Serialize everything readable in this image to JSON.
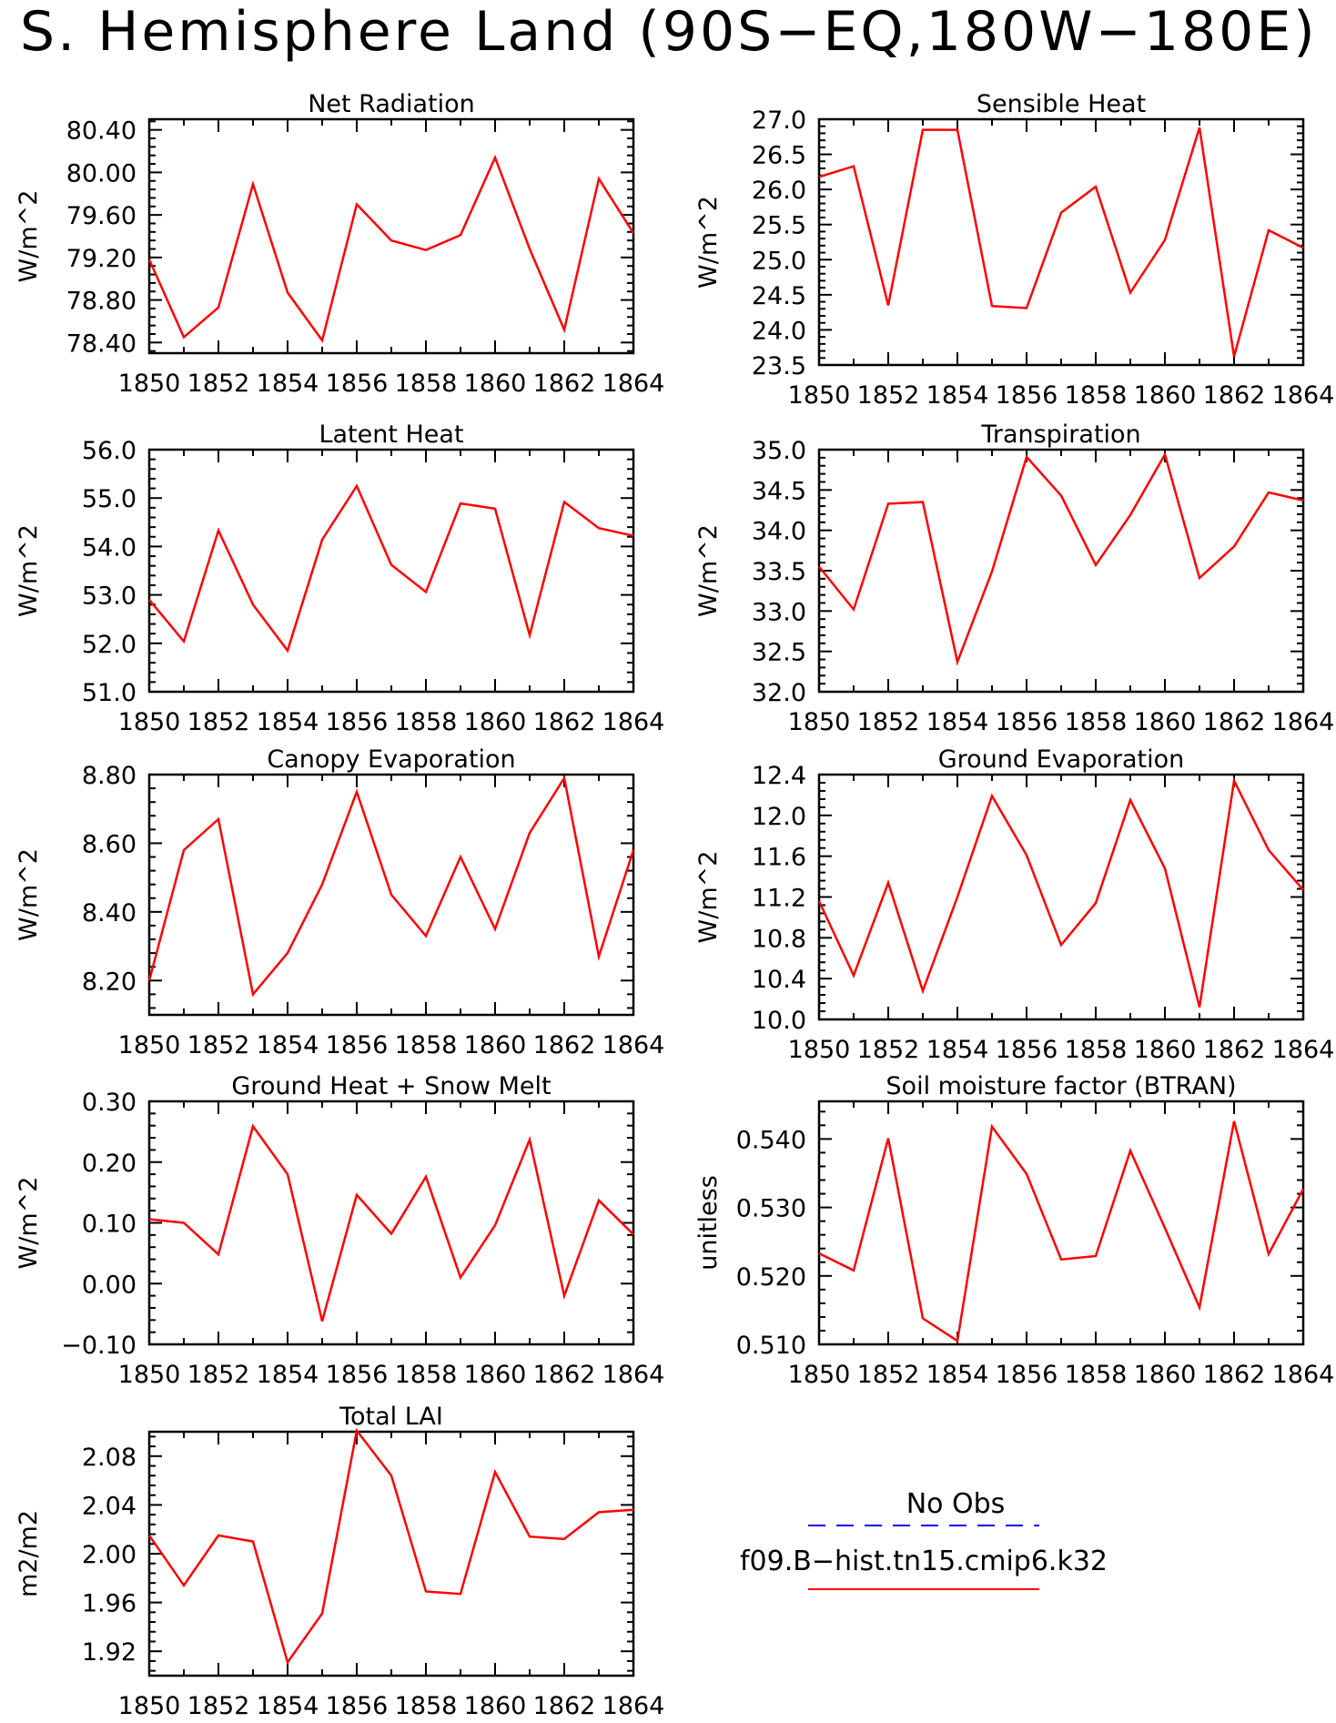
{
  "title": "S. Hemisphere Land (90S−EQ,180W−180E)",
  "colors": {
    "model": "#ff0000",
    "obs": "#0000ff",
    "axis": "#000000"
  },
  "legend": {
    "obs_label": "No Obs",
    "model_label": "f09.B−hist.tn15.cmip6.k32"
  },
  "chart_data": [
    {
      "type": "line",
      "title": "Net Radiation",
      "ylabel": "W/m^2",
      "x": [
        1850,
        1851,
        1852,
        1853,
        1854,
        1855,
        1856,
        1857,
        1858,
        1859,
        1860,
        1861,
        1862,
        1863,
        1864
      ],
      "xticks": [
        "1850",
        "1852",
        "1854",
        "1856",
        "1858",
        "1860",
        "1862",
        "1864"
      ],
      "ylim": [
        78.3,
        80.5
      ],
      "yticks": [
        "78.40",
        "78.80",
        "79.20",
        "79.60",
        "80.00",
        "80.40"
      ],
      "grid": false,
      "series": [
        {
          "values": [
            79.18,
            78.45,
            78.73,
            79.89,
            78.87,
            78.42,
            79.7,
            79.36,
            79.27,
            79.41,
            80.14,
            79.28,
            78.52,
            79.94,
            79.43
          ]
        }
      ]
    },
    {
      "type": "line",
      "title": "Sensible Heat",
      "ylabel": "W/m^2",
      "x": [
        1850,
        1851,
        1852,
        1853,
        1854,
        1855,
        1856,
        1857,
        1858,
        1859,
        1860,
        1861,
        1862,
        1863,
        1864
      ],
      "xticks": [
        "1850",
        "1852",
        "1854",
        "1856",
        "1858",
        "1860",
        "1862",
        "1864"
      ],
      "ylim": [
        23.5,
        27.0
      ],
      "yticks": [
        "23.5",
        "24.0",
        "24.5",
        "25.0",
        "25.5",
        "26.0",
        "26.5",
        "27.0"
      ],
      "grid": false,
      "series": [
        {
          "values": [
            26.18,
            26.33,
            24.35,
            26.85,
            26.85,
            24.34,
            24.31,
            25.67,
            26.04,
            24.53,
            25.28,
            26.88,
            23.62,
            25.42,
            25.17
          ]
        }
      ]
    },
    {
      "type": "line",
      "title": "Latent Heat",
      "ylabel": "W/m^2",
      "x": [
        1850,
        1851,
        1852,
        1853,
        1854,
        1855,
        1856,
        1857,
        1858,
        1859,
        1860,
        1861,
        1862,
        1863,
        1864
      ],
      "xticks": [
        "1850",
        "1852",
        "1854",
        "1856",
        "1858",
        "1860",
        "1862",
        "1864"
      ],
      "ylim": [
        51.0,
        56.0
      ],
      "yticks": [
        "51.0",
        "52.0",
        "53.0",
        "54.0",
        "55.0",
        "56.0"
      ],
      "grid": false,
      "series": [
        {
          "values": [
            52.9,
            52.04,
            54.33,
            52.8,
            51.85,
            54.14,
            55.25,
            53.62,
            53.06,
            54.89,
            54.78,
            52.17,
            54.92,
            54.38,
            54.22
          ]
        }
      ]
    },
    {
      "type": "line",
      "title": "Transpiration",
      "ylabel": "W/m^2",
      "x": [
        1850,
        1851,
        1852,
        1853,
        1854,
        1855,
        1856,
        1857,
        1858,
        1859,
        1860,
        1861,
        1862,
        1863,
        1864
      ],
      "xticks": [
        "1850",
        "1852",
        "1854",
        "1856",
        "1858",
        "1860",
        "1862",
        "1864"
      ],
      "ylim": [
        32.0,
        35.0
      ],
      "yticks": [
        "32.0",
        "32.5",
        "33.0",
        "33.5",
        "34.0",
        "34.5",
        "35.0"
      ],
      "grid": false,
      "series": [
        {
          "values": [
            33.55,
            33.02,
            34.33,
            34.35,
            32.37,
            33.49,
            34.91,
            34.43,
            33.57,
            34.19,
            34.94,
            33.41,
            33.8,
            34.47,
            34.37
          ]
        }
      ]
    },
    {
      "type": "line",
      "title": "Canopy Evaporation",
      "ylabel": "W/m^2",
      "x": [
        1850,
        1851,
        1852,
        1853,
        1854,
        1855,
        1856,
        1857,
        1858,
        1859,
        1860,
        1861,
        1862,
        1863,
        1864
      ],
      "xticks": [
        "1850",
        "1852",
        "1854",
        "1856",
        "1858",
        "1860",
        "1862",
        "1864"
      ],
      "ylim": [
        8.1,
        8.8
      ],
      "yticks": [
        "8.20",
        "8.40",
        "8.60",
        "8.80"
      ],
      "grid": false,
      "series": [
        {
          "values": [
            8.2,
            8.58,
            8.67,
            8.16,
            8.28,
            8.48,
            8.75,
            8.45,
            8.33,
            8.56,
            8.35,
            8.63,
            8.79,
            8.27,
            8.58
          ]
        }
      ]
    },
    {
      "type": "line",
      "title": "Ground Evaporation",
      "ylabel": "W/m^2",
      "x": [
        1850,
        1851,
        1852,
        1853,
        1854,
        1855,
        1856,
        1857,
        1858,
        1859,
        1860,
        1861,
        1862,
        1863,
        1864
      ],
      "xticks": [
        "1850",
        "1852",
        "1854",
        "1856",
        "1858",
        "1860",
        "1862",
        "1864"
      ],
      "ylim": [
        10.0,
        12.4
      ],
      "yticks": [
        "10.0",
        "10.4",
        "10.8",
        "11.2",
        "11.6",
        "12.0",
        "12.4"
      ],
      "grid": false,
      "series": [
        {
          "values": [
            11.16,
            10.43,
            11.34,
            10.28,
            11.2,
            12.19,
            11.61,
            10.73,
            11.14,
            12.15,
            11.48,
            10.12,
            12.34,
            11.66,
            11.27
          ]
        }
      ]
    },
    {
      "type": "line",
      "title": "Ground Heat + Snow Melt",
      "ylabel": "W/m^2",
      "x": [
        1850,
        1851,
        1852,
        1853,
        1854,
        1855,
        1856,
        1857,
        1858,
        1859,
        1860,
        1861,
        1862,
        1863,
        1864
      ],
      "xticks": [
        "1850",
        "1852",
        "1854",
        "1856",
        "1858",
        "1860",
        "1862",
        "1864"
      ],
      "ylim": [
        -0.1,
        0.3
      ],
      "yticks": [
        "−0.10",
        "0.00",
        "0.10",
        "0.20",
        "0.30"
      ],
      "grid": false,
      "series": [
        {
          "values": [
            0.106,
            0.1,
            0.048,
            0.259,
            0.18,
            -0.062,
            0.146,
            0.082,
            0.176,
            0.01,
            0.096,
            0.237,
            -0.02,
            0.137,
            0.081
          ]
        }
      ]
    },
    {
      "type": "line",
      "title": "Soil moisture factor (BTRAN)",
      "ylabel": "unitless",
      "x": [
        1850,
        1851,
        1852,
        1853,
        1854,
        1855,
        1856,
        1857,
        1858,
        1859,
        1860,
        1861,
        1862,
        1863,
        1864
      ],
      "xticks": [
        "1850",
        "1852",
        "1854",
        "1856",
        "1858",
        "1860",
        "1862",
        "1864"
      ],
      "ylim": [
        0.51,
        0.5455
      ],
      "yticks": [
        "0.510",
        "0.520",
        "0.530",
        "0.540"
      ],
      "grid": false,
      "series": [
        {
          "values": [
            0.5233,
            0.5208,
            0.5401,
            0.5138,
            0.5105,
            0.5418,
            0.5349,
            0.5224,
            0.5229,
            0.5383,
            0.527,
            0.5154,
            0.5426,
            0.5232,
            0.5327
          ]
        }
      ]
    },
    {
      "type": "line",
      "title": "Total LAI",
      "ylabel": "m2/m2",
      "x": [
        1850,
        1851,
        1852,
        1853,
        1854,
        1855,
        1856,
        1857,
        1858,
        1859,
        1860,
        1861,
        1862,
        1863,
        1864
      ],
      "xticks": [
        "1850",
        "1852",
        "1854",
        "1856",
        "1858",
        "1860",
        "1862",
        "1864"
      ],
      "ylim": [
        1.9,
        2.1
      ],
      "yticks": [
        "1.92",
        "1.96",
        "2.00",
        "2.04",
        "2.08"
      ],
      "grid": false,
      "series": [
        {
          "values": [
            2.015,
            1.974,
            2.015,
            2.01,
            1.911,
            1.951,
            2.101,
            2.064,
            1.969,
            1.967,
            2.067,
            2.014,
            2.012,
            2.034,
            2.036
          ]
        }
      ]
    }
  ]
}
